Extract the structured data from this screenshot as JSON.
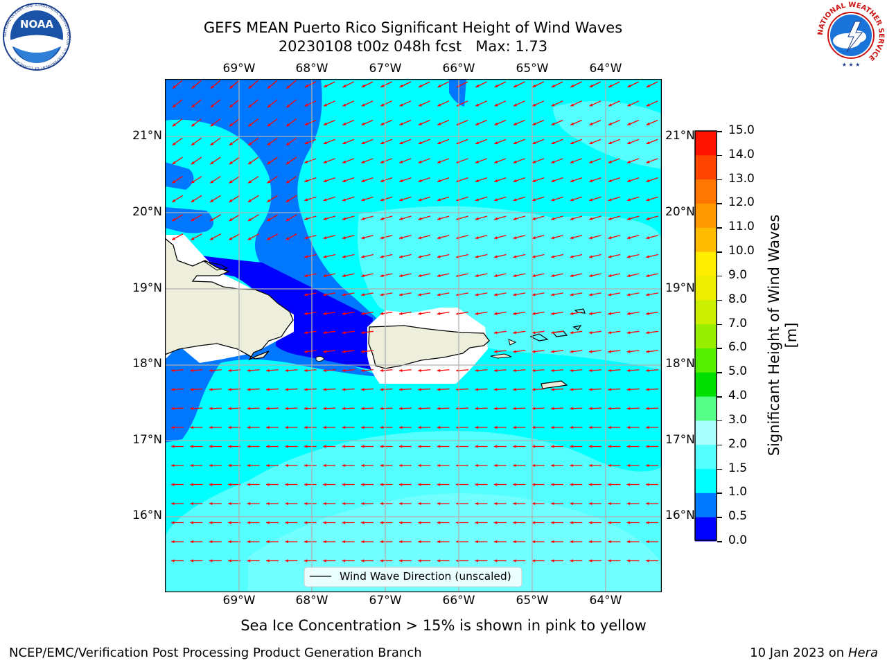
{
  "header": {
    "title_line1": "GEFS MEAN Puerto Rico Significant Height of Wind Waves",
    "title_line2": "20230108 t00z 048h fcst   Max: 1.73"
  },
  "logos": {
    "left_label": "NOAA",
    "left_ring_text": "NATIONAL OCEANIC AND ATMOSPHERIC ADMINISTRATION · U.S. DEPARTMENT OF COMMERCE",
    "right_ring_text": "NATIONAL WEATHER SERVICE"
  },
  "map": {
    "lon_ticks": [
      "69°W",
      "68°W",
      "67°W",
      "66°W",
      "65°W",
      "64°W"
    ],
    "lat_ticks": [
      "21°N",
      "20°N",
      "19°N",
      "18°N",
      "17°N",
      "16°N"
    ],
    "legend_label": "Wind Wave Direction (unscaled)",
    "ocean_color": "#00ffff",
    "arrow_color": "#ff0000",
    "land_color": "#eeeedd"
  },
  "colorbar": {
    "label": "Significant Height of Wind Waves [m]",
    "tick_labels": [
      "0.0",
      "0.5",
      "1.0",
      "1.5",
      "2.0",
      "3.0",
      "4.0",
      "5.0",
      "6.0",
      "7.0",
      "8.0",
      "9.0",
      "10.0",
      "11.0",
      "12.0",
      "13.0",
      "14.0",
      "15.0"
    ],
    "colors": [
      "#0000ff",
      "#0077ff",
      "#00ffff",
      "#55ffff",
      "#aaffff",
      "#55ff88",
      "#00dd00",
      "#55ee00",
      "#99ee00",
      "#ccee00",
      "#eeee00",
      "#ffee00",
      "#ffbb00",
      "#ff9900",
      "#ff7700",
      "#ff4400",
      "#ff1100"
    ]
  },
  "footer": {
    "note": "Sea Ice Concentration > 15% is shown in pink to yellow",
    "credit": "NCEP/EMC/Verification Post Processing Product Generation Branch",
    "date": "10 Jan 2023 on",
    "machine": "Hera"
  }
}
